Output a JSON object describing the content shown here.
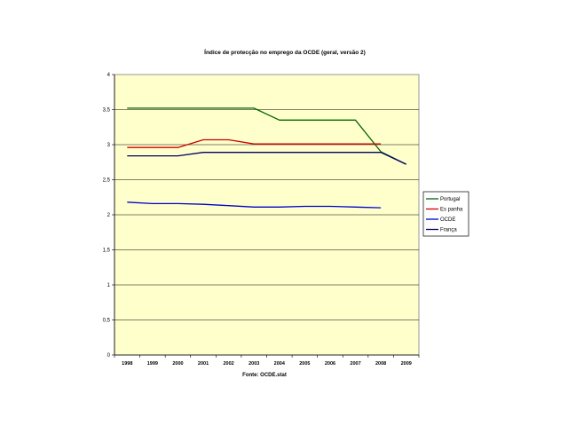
{
  "chart_data": {
    "type": "line",
    "title": "Índice de protecção no emprego da OCDE (geral, versão 2)",
    "footer": "Fonte: OCDE.stat",
    "categories": [
      "1998",
      "1999",
      "2000",
      "2001",
      "2002",
      "2003",
      "2004",
      "2005",
      "2006",
      "2007",
      "2008",
      "2009"
    ],
    "ylim": [
      0,
      4
    ],
    "yticks": [
      "0",
      "0,5",
      "1",
      "1,5",
      "2",
      "2,5",
      "3",
      "3,5",
      "4"
    ],
    "grid": true,
    "legend_position": "right",
    "plot_background": "#ffffcc",
    "series": [
      {
        "name": "Portugal",
        "color": "#006600",
        "values": [
          3.52,
          3.52,
          3.52,
          3.52,
          3.52,
          3.52,
          3.35,
          3.35,
          3.35,
          3.35,
          2.9,
          2.72
        ]
      },
      {
        "name": "Es panha",
        "color": "#cc0000",
        "values": [
          2.96,
          2.96,
          2.96,
          3.07,
          3.07,
          3.01,
          3.01,
          3.01,
          3.01,
          3.01,
          3.01,
          null
        ]
      },
      {
        "name": "OCDE",
        "color": "#0000cc",
        "values": [
          2.18,
          2.16,
          2.16,
          2.15,
          2.13,
          2.11,
          2.11,
          2.12,
          2.12,
          2.11,
          2.1,
          null
        ]
      },
      {
        "name": "França",
        "color": "#000066",
        "values": [
          2.84,
          2.84,
          2.84,
          2.89,
          2.89,
          2.89,
          2.89,
          2.89,
          2.89,
          2.89,
          2.89,
          2.72
        ]
      }
    ]
  }
}
